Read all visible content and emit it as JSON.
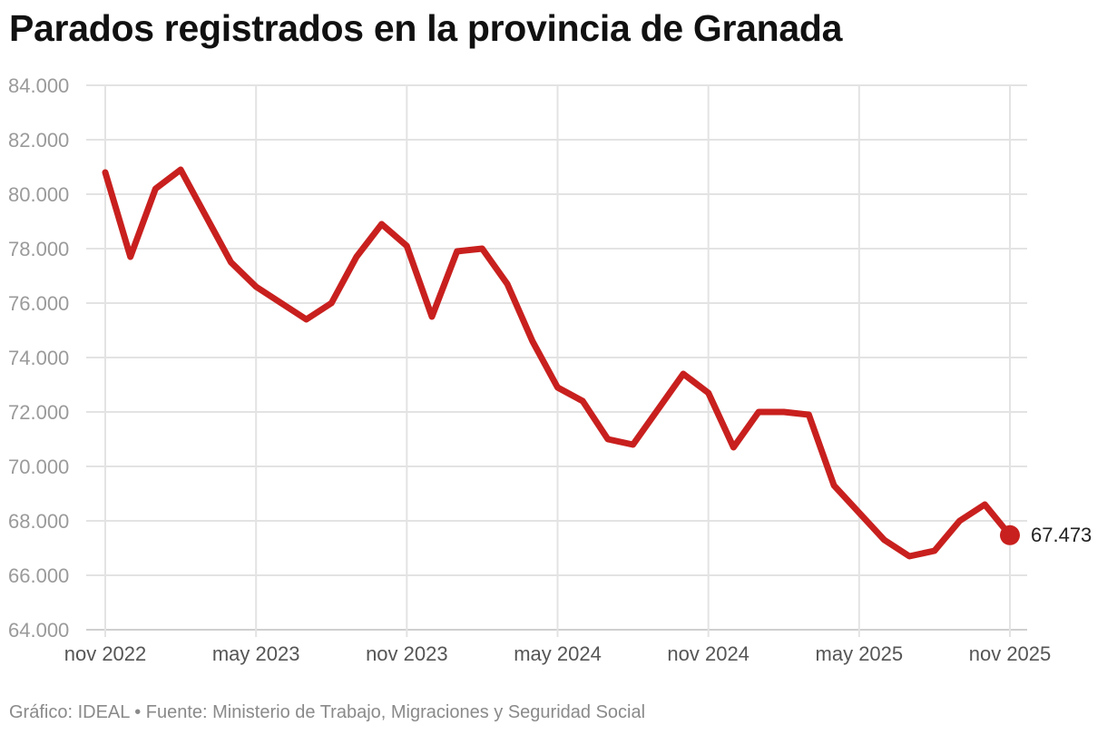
{
  "chart_data": {
    "type": "line",
    "title": "Parados registrados en la provincia de Granada",
    "xlabel": "",
    "ylabel": "",
    "x_ticks": [
      "nov 2022",
      "may 2023",
      "nov 2023",
      "may 2024",
      "nov 2024",
      "may 2025",
      "nov 2025"
    ],
    "y_ticks": [
      "84.000",
      "82.000",
      "80.000",
      "78.000",
      "76.000",
      "74.000",
      "72.000",
      "70.000",
      "68.000",
      "66.000",
      "64.000"
    ],
    "ylim": [
      64000,
      84000
    ],
    "grid": true,
    "line_color": "#c8201e",
    "series": [
      {
        "x": [
          "2022-11",
          "2022-12",
          "2023-01",
          "2023-02",
          "2023-03",
          "2023-04",
          "2023-05",
          "2023-06",
          "2023-07",
          "2023-08",
          "2023-09",
          "2023-10",
          "2023-11",
          "2023-12",
          "2024-01",
          "2024-02",
          "2024-03",
          "2024-04",
          "2024-05",
          "2024-06",
          "2024-07",
          "2024-08",
          "2024-09",
          "2024-10",
          "2024-11",
          "2024-12",
          "2025-01",
          "2025-02",
          "2025-03",
          "2025-04",
          "2025-05",
          "2025-06",
          "2025-07",
          "2025-08",
          "2025-09",
          "2025-10",
          "2025-11"
        ],
        "values": [
          80800,
          77700,
          80200,
          80900,
          79200,
          77500,
          76600,
          76000,
          75400,
          76000,
          77700,
          78900,
          78100,
          75500,
          77900,
          78000,
          76700,
          74600,
          72900,
          72400,
          71000,
          70800,
          72100,
          73400,
          72700,
          70700,
          72000,
          72000,
          71900,
          69300,
          68300,
          67300,
          66700,
          66900,
          68000,
          68600,
          67473
        ]
      }
    ],
    "end_label": "67.473"
  },
  "footer": "Gráfico: IDEAL • Fuente: Ministerio de Trabajo, Migraciones y Seguridad Social"
}
